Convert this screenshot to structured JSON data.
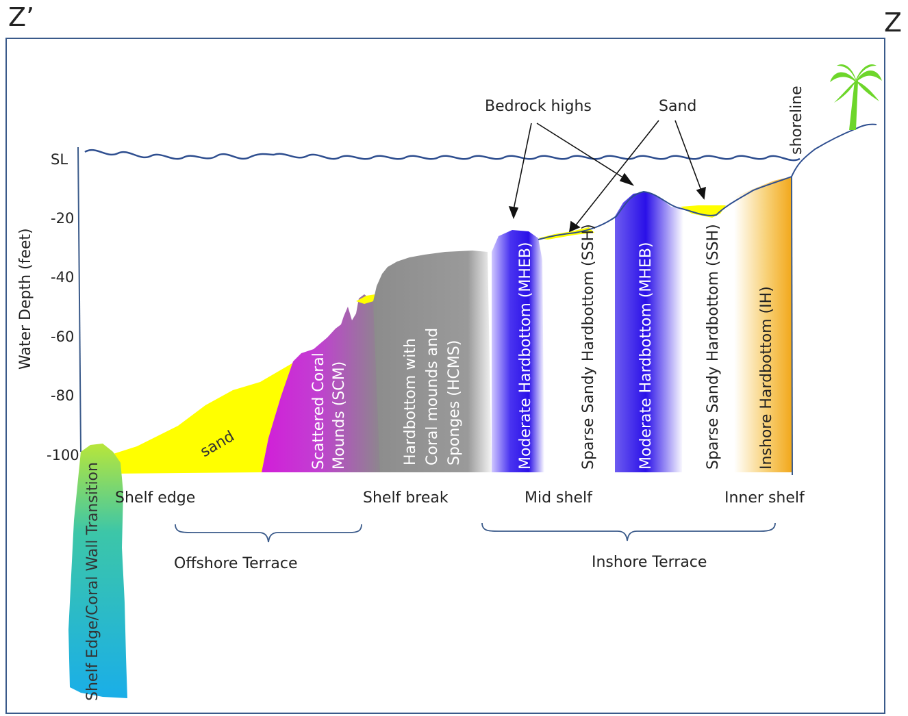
{
  "corners": {
    "left": "Z’",
    "right": "Z"
  },
  "axis": {
    "title": "Water Depth (feet)",
    "ticks": [
      "SL",
      "-20",
      "-40",
      "-60",
      "-80",
      "-100"
    ]
  },
  "zones": {
    "wall": "Shelf Edge/Coral Wall Transition",
    "sand": "sand",
    "scm_line1": "Scattered Coral",
    "scm_line2": "Mounds (SCM)",
    "hcms_line1": "Hardbottom with",
    "hcms_line2": "Coral mounds and",
    "hcms_line3": "Sponges (HCMS)",
    "mheb1": "Moderate Hardbottom (MHEB)",
    "ssh1": "Sparse Sandy Hardbottom (SSH)",
    "mheb2": "Moderate Hardbottom (MHEB)",
    "ssh2": "Sparse Sandy Hardbottom (SSH)",
    "ih": "Inshore Hardbottom (IH)"
  },
  "shelf_labels": {
    "shelf_edge": "Shelf edge",
    "shelf_break": "Shelf break",
    "mid_shelf": "Mid shelf",
    "inner_shelf": "Inner shelf"
  },
  "terraces": {
    "offshore": "Offshore Terrace",
    "inshore": "Inshore Terrace"
  },
  "callouts": {
    "bedrock": "Bedrock highs",
    "sand": "Sand",
    "shoreline": "shoreline"
  },
  "colors": {
    "frame": "#3a5a8a",
    "water": "#2e4e8f",
    "sand": "#ffff00",
    "scm": "#d21ed8",
    "hcms": "#8a8a8a",
    "mheb": "#2a10e8",
    "ih": "#f2a81c",
    "wall_top": "#b8e63a",
    "wall_bottom": "#1aaee8",
    "palm": "#6dd62a"
  }
}
